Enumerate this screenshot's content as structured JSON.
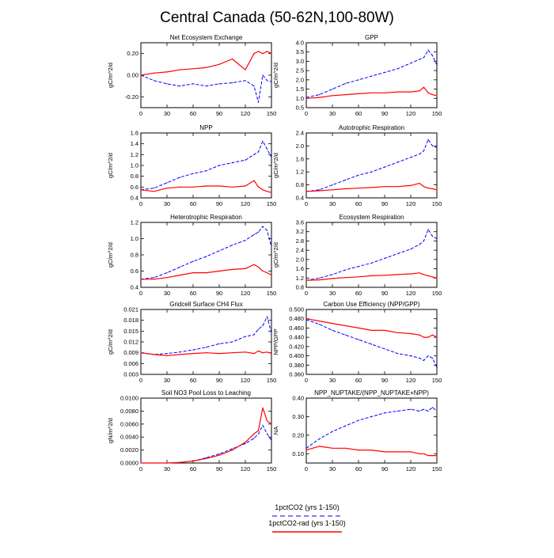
{
  "figure_title": "Central Canada (50-62N,100-80W)",
  "legend": {
    "entries": [
      {
        "label": "1pctCO2 (yrs 1-150)",
        "color": "#0000ff",
        "dash": true
      },
      {
        "label": "1pctCO2-rad (yrs 1-150)",
        "color": "#ff0000",
        "dash": false
      }
    ],
    "placement": "bottom-center"
  },
  "chart_data": [
    {
      "type": "line",
      "title": "Net Ecosystem Exchange",
      "xlabel": "",
      "ylabel": "gC/m^2/d",
      "xlim": [
        0,
        150
      ],
      "ylim": [
        -0.3,
        0.3
      ],
      "xticks": [
        0,
        30,
        60,
        90,
        120,
        150
      ],
      "yticks": [
        -0.2,
        0.0,
        0.2
      ],
      "ytick_labels": [
        "-0.20",
        "0.00",
        "0.20"
      ],
      "series": [
        {
          "name": "1pctCO2 (yrs 1-150)",
          "color": "#0000ff",
          "dash": true,
          "x": [
            0,
            15,
            30,
            45,
            60,
            75,
            90,
            105,
            120,
            130,
            135,
            140,
            145,
            150
          ],
          "y": [
            0.0,
            -0.05,
            -0.08,
            -0.1,
            -0.08,
            -0.1,
            -0.08,
            -0.07,
            -0.05,
            -0.1,
            -0.25,
            0.0,
            -0.05,
            -0.06
          ]
        },
        {
          "name": "1pctCO2-rad (yrs 1-150)",
          "color": "#ff0000",
          "dash": false,
          "x": [
            0,
            15,
            30,
            45,
            60,
            75,
            90,
            105,
            120,
            130,
            135,
            140,
            145,
            150
          ],
          "y": [
            0.0,
            0.02,
            0.03,
            0.05,
            0.06,
            0.07,
            0.1,
            0.15,
            0.05,
            0.2,
            0.22,
            0.2,
            0.22,
            0.2
          ]
        }
      ]
    },
    {
      "type": "line",
      "title": "GPP",
      "xlabel": "",
      "ylabel": "gC/m^2/d",
      "xlim": [
        0,
        150
      ],
      "ylim": [
        0.5,
        4.0
      ],
      "xticks": [
        0,
        30,
        60,
        90,
        120,
        150
      ],
      "yticks": [
        0.5,
        1.0,
        1.5,
        2.0,
        2.5,
        3.0,
        3.5,
        4.0
      ],
      "ytick_labels": [
        "0.5",
        "1.0",
        "1.5",
        "2.0",
        "2.5",
        "3.0",
        "3.5",
        "4.0"
      ],
      "series": [
        {
          "name": "1pctCO2 (yrs 1-150)",
          "color": "#0000ff",
          "dash": true,
          "x": [
            0,
            15,
            30,
            45,
            60,
            75,
            90,
            105,
            120,
            130,
            135,
            140,
            145,
            150
          ],
          "y": [
            1.05,
            1.2,
            1.5,
            1.8,
            2.0,
            2.2,
            2.4,
            2.6,
            2.9,
            3.1,
            3.2,
            3.6,
            3.3,
            2.8
          ]
        },
        {
          "name": "1pctCO2-rad (yrs 1-150)",
          "color": "#ff0000",
          "dash": false,
          "x": [
            0,
            15,
            30,
            45,
            60,
            75,
            90,
            105,
            120,
            130,
            135,
            140,
            145,
            150
          ],
          "y": [
            1.0,
            1.05,
            1.15,
            1.2,
            1.25,
            1.3,
            1.3,
            1.35,
            1.35,
            1.4,
            1.6,
            1.3,
            1.2,
            1.15
          ]
        }
      ]
    },
    {
      "type": "line",
      "title": "NPP",
      "xlabel": "",
      "ylabel": "gC/m^2/d",
      "xlim": [
        0,
        150
      ],
      "ylim": [
        0.4,
        1.6
      ],
      "xticks": [
        0,
        30,
        60,
        90,
        120,
        150
      ],
      "yticks": [
        0.4,
        0.6,
        0.8,
        1.0,
        1.2,
        1.4,
        1.6
      ],
      "ytick_labels": [
        "0.4",
        "0.6",
        "0.8",
        "1.0",
        "1.2",
        "1.4",
        "1.6"
      ],
      "series": [
        {
          "name": "1pctCO2 (yrs 1-150)",
          "color": "#0000ff",
          "dash": true,
          "x": [
            0,
            15,
            30,
            45,
            60,
            75,
            90,
            105,
            120,
            130,
            135,
            140,
            145,
            150
          ],
          "y": [
            0.55,
            0.58,
            0.68,
            0.78,
            0.85,
            0.9,
            1.0,
            1.05,
            1.1,
            1.2,
            1.25,
            1.45,
            1.3,
            1.15
          ]
        },
        {
          "name": "1pctCO2-rad (yrs 1-150)",
          "color": "#ff0000",
          "dash": false,
          "x": [
            0,
            15,
            30,
            45,
            60,
            75,
            90,
            105,
            120,
            130,
            135,
            140,
            145,
            150
          ],
          "y": [
            0.55,
            0.52,
            0.58,
            0.6,
            0.6,
            0.62,
            0.62,
            0.6,
            0.62,
            0.72,
            0.6,
            0.55,
            0.52,
            0.5
          ]
        }
      ]
    },
    {
      "type": "line",
      "title": "Autotrophic Respiration",
      "xlabel": "",
      "ylabel": "gC/m^2/d",
      "xlim": [
        0,
        150
      ],
      "ylim": [
        0.4,
        2.4
      ],
      "xticks": [
        0,
        30,
        60,
        90,
        120,
        150
      ],
      "yticks": [
        0.4,
        0.8,
        1.2,
        1.6,
        2.0,
        2.4
      ],
      "ytick_labels": [
        "0.4",
        "0.8",
        "1.2",
        "1.6",
        "2.0",
        "2.4"
      ],
      "series": [
        {
          "name": "1pctCO2 (yrs 1-150)",
          "color": "#0000ff",
          "dash": true,
          "x": [
            0,
            15,
            30,
            45,
            60,
            75,
            90,
            105,
            120,
            130,
            135,
            140,
            145,
            150
          ],
          "y": [
            0.6,
            0.65,
            0.8,
            0.95,
            1.1,
            1.2,
            1.35,
            1.5,
            1.65,
            1.75,
            1.85,
            2.2,
            2.0,
            1.95
          ]
        },
        {
          "name": "1pctCO2-rad (yrs 1-150)",
          "color": "#ff0000",
          "dash": false,
          "x": [
            0,
            15,
            30,
            45,
            60,
            75,
            90,
            105,
            120,
            130,
            135,
            140,
            145,
            150
          ],
          "y": [
            0.6,
            0.62,
            0.65,
            0.68,
            0.7,
            0.72,
            0.75,
            0.75,
            0.78,
            0.85,
            0.75,
            0.7,
            0.68,
            0.65
          ]
        }
      ]
    },
    {
      "type": "line",
      "title": "Heterotrophic Respiration",
      "xlabel": "",
      "ylabel": "gC/m^2/d",
      "xlim": [
        0,
        150
      ],
      "ylim": [
        0.4,
        1.2
      ],
      "xticks": [
        0,
        30,
        60,
        90,
        120,
        150
      ],
      "yticks": [
        0.4,
        0.6,
        0.8,
        1.0,
        1.2
      ],
      "ytick_labels": [
        "0.4",
        "0.6",
        "0.8",
        "1.0",
        "1.2"
      ],
      "series": [
        {
          "name": "1pctCO2 (yrs 1-150)",
          "color": "#0000ff",
          "dash": true,
          "x": [
            0,
            15,
            30,
            45,
            60,
            75,
            90,
            105,
            120,
            130,
            135,
            140,
            145,
            150
          ],
          "y": [
            0.5,
            0.52,
            0.58,
            0.65,
            0.72,
            0.78,
            0.85,
            0.92,
            0.98,
            1.05,
            1.08,
            1.15,
            1.1,
            0.9
          ]
        },
        {
          "name": "1pctCO2-rad (yrs 1-150)",
          "color": "#ff0000",
          "dash": false,
          "x": [
            0,
            15,
            30,
            45,
            60,
            75,
            90,
            105,
            120,
            130,
            135,
            140,
            145,
            150
          ],
          "y": [
            0.5,
            0.5,
            0.52,
            0.55,
            0.58,
            0.58,
            0.6,
            0.62,
            0.63,
            0.68,
            0.65,
            0.6,
            0.58,
            0.55
          ]
        }
      ]
    },
    {
      "type": "line",
      "title": "Ecosystem Respiration",
      "xlabel": "",
      "ylabel": "gC/m^2/d",
      "xlim": [
        0,
        150
      ],
      "ylim": [
        0.8,
        3.6
      ],
      "xticks": [
        0,
        30,
        60,
        90,
        120,
        150
      ],
      "yticks": [
        0.8,
        1.2,
        1.6,
        2.0,
        2.4,
        2.8,
        3.2,
        3.6
      ],
      "ytick_labels": [
        "0.8",
        "1.2",
        "1.6",
        "2.0",
        "2.4",
        "2.8",
        "3.2",
        "3.6"
      ],
      "series": [
        {
          "name": "1pctCO2 (yrs 1-150)",
          "color": "#0000ff",
          "dash": true,
          "x": [
            0,
            15,
            30,
            45,
            60,
            75,
            90,
            105,
            120,
            130,
            135,
            140,
            145,
            150
          ],
          "y": [
            1.1,
            1.2,
            1.35,
            1.55,
            1.7,
            1.85,
            2.05,
            2.25,
            2.45,
            2.65,
            2.8,
            3.3,
            3.0,
            2.9
          ]
        },
        {
          "name": "1pctCO2-rad (yrs 1-150)",
          "color": "#ff0000",
          "dash": false,
          "x": [
            0,
            15,
            30,
            45,
            60,
            75,
            90,
            105,
            120,
            130,
            135,
            140,
            145,
            150
          ],
          "y": [
            1.1,
            1.12,
            1.18,
            1.22,
            1.25,
            1.3,
            1.32,
            1.35,
            1.38,
            1.42,
            1.35,
            1.3,
            1.25,
            1.2
          ]
        }
      ]
    },
    {
      "type": "line",
      "title": "Gridcell Surface CH4 Flux",
      "xlabel": "",
      "ylabel": "gC/m^2/d",
      "xlim": [
        0,
        150
      ],
      "ylim": [
        0.003,
        0.021
      ],
      "xticks": [
        0,
        30,
        60,
        90,
        120,
        150
      ],
      "yticks": [
        0.003,
        0.006,
        0.009,
        0.012,
        0.015,
        0.018,
        0.021
      ],
      "ytick_labels": [
        "0.003",
        "0.006",
        "0.009",
        "0.012",
        "0.015",
        "0.018",
        "0.021"
      ],
      "series": [
        {
          "name": "1pctCO2 (yrs 1-150)",
          "color": "#0000ff",
          "dash": true,
          "x": [
            0,
            15,
            30,
            45,
            60,
            75,
            90,
            105,
            120,
            130,
            135,
            140,
            145,
            150
          ],
          "y": [
            0.009,
            0.0085,
            0.0088,
            0.0092,
            0.0098,
            0.0105,
            0.0115,
            0.012,
            0.0135,
            0.014,
            0.0155,
            0.0165,
            0.019,
            0.0145
          ]
        },
        {
          "name": "1pctCO2-rad (yrs 1-150)",
          "color": "#ff0000",
          "dash": false,
          "x": [
            0,
            15,
            30,
            45,
            60,
            75,
            90,
            105,
            120,
            130,
            135,
            140,
            145,
            150
          ],
          "y": [
            0.009,
            0.0085,
            0.0082,
            0.0085,
            0.0088,
            0.009,
            0.0088,
            0.009,
            0.0092,
            0.0088,
            0.0095,
            0.009,
            0.0092,
            0.0088
          ]
        }
      ]
    },
    {
      "type": "line",
      "title": "Carbon Use Efficiency (NPP/GPP)",
      "xlabel": "",
      "ylabel": "NPP/GPP",
      "xlim": [
        0,
        150
      ],
      "ylim": [
        0.36,
        0.5
      ],
      "xticks": [
        0,
        30,
        60,
        90,
        120,
        150
      ],
      "yticks": [
        0.36,
        0.38,
        0.4,
        0.42,
        0.44,
        0.46,
        0.48,
        0.5
      ],
      "ytick_labels": [
        "0.360",
        "0.380",
        "0.400",
        "0.420",
        "0.440",
        "0.460",
        "0.480",
        "0.500"
      ],
      "series": [
        {
          "name": "1pctCO2 (yrs 1-150)",
          "color": "#0000ff",
          "dash": true,
          "x": [
            0,
            15,
            30,
            45,
            60,
            75,
            90,
            105,
            120,
            130,
            135,
            140,
            145,
            150
          ],
          "y": [
            0.478,
            0.468,
            0.455,
            0.445,
            0.435,
            0.425,
            0.415,
            0.405,
            0.4,
            0.395,
            0.39,
            0.4,
            0.395,
            0.375
          ]
        },
        {
          "name": "1pctCO2-rad (yrs 1-150)",
          "color": "#ff0000",
          "dash": false,
          "x": [
            0,
            15,
            30,
            45,
            60,
            75,
            90,
            105,
            120,
            130,
            135,
            140,
            145,
            150
          ],
          "y": [
            0.48,
            0.475,
            0.47,
            0.465,
            0.46,
            0.455,
            0.455,
            0.45,
            0.448,
            0.445,
            0.44,
            0.44,
            0.445,
            0.44
          ]
        }
      ]
    },
    {
      "type": "line",
      "title": "Soil NO3 Pool Loss to Leaching",
      "xlabel": "",
      "ylabel": "gN/m^2/d",
      "xlim": [
        0,
        150
      ],
      "ylim": [
        0,
        0.01
      ],
      "xticks": [
        0,
        30,
        60,
        90,
        120,
        150
      ],
      "yticks": [
        0,
        0.002,
        0.004,
        0.006,
        0.008,
        0.01
      ],
      "ytick_labels": [
        "0.0000",
        "0.0020",
        "0.0040",
        "0.0060",
        "0.0080",
        "0.0100"
      ],
      "series": [
        {
          "name": "1pctCO2 (yrs 1-150)",
          "color": "#0000ff",
          "dash": true,
          "x": [
            0,
            15,
            30,
            45,
            60,
            75,
            90,
            105,
            120,
            130,
            135,
            140,
            145,
            150
          ],
          "y": [
            0.0,
            0.0,
            0.0,
            0.0001,
            0.0003,
            0.0008,
            0.0014,
            0.0022,
            0.003,
            0.0038,
            0.0045,
            0.0058,
            0.0045,
            0.0035
          ]
        },
        {
          "name": "1pctCO2-rad (yrs 1-150)",
          "color": "#ff0000",
          "dash": false,
          "x": [
            0,
            15,
            30,
            45,
            60,
            75,
            90,
            105,
            120,
            130,
            135,
            140,
            145,
            150
          ],
          "y": [
            0.0,
            0.0,
            0.0,
            0.0001,
            0.0003,
            0.0007,
            0.0012,
            0.002,
            0.0032,
            0.0045,
            0.005,
            0.0085,
            0.0065,
            0.006
          ]
        }
      ]
    },
    {
      "type": "line",
      "title": "NPP_NUPTAKE/(NPP_NUPTAKE+NPP)",
      "xlabel": "",
      "ylabel": "NA",
      "xlim": [
        0,
        150
      ],
      "ylim": [
        0.05,
        0.4
      ],
      "xticks": [
        0,
        30,
        60,
        90,
        120,
        150
      ],
      "yticks": [
        0.1,
        0.2,
        0.3,
        0.4
      ],
      "ytick_labels": [
        "0.10",
        "0.20",
        "0.30",
        "0.40"
      ],
      "series": [
        {
          "name": "1pctCO2 (yrs 1-150)",
          "color": "#0000ff",
          "dash": true,
          "x": [
            0,
            15,
            30,
            45,
            60,
            75,
            90,
            105,
            120,
            130,
            135,
            140,
            145,
            150
          ],
          "y": [
            0.13,
            0.18,
            0.22,
            0.25,
            0.28,
            0.3,
            0.32,
            0.33,
            0.34,
            0.33,
            0.34,
            0.33,
            0.35,
            0.33
          ]
        },
        {
          "name": "1pctCO2-rad (yrs 1-150)",
          "color": "#ff0000",
          "dash": false,
          "x": [
            0,
            15,
            30,
            45,
            60,
            75,
            90,
            105,
            120,
            130,
            135,
            140,
            145,
            150
          ],
          "y": [
            0.12,
            0.14,
            0.13,
            0.13,
            0.12,
            0.12,
            0.11,
            0.11,
            0.11,
            0.1,
            0.1,
            0.09,
            0.09,
            0.09
          ]
        }
      ]
    }
  ]
}
